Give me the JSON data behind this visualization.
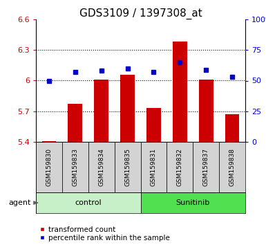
{
  "title": "GDS3109 / 1397308_at",
  "samples": [
    "GSM159830",
    "GSM159833",
    "GSM159834",
    "GSM159835",
    "GSM159831",
    "GSM159832",
    "GSM159837",
    "GSM159838"
  ],
  "groups": [
    "control",
    "control",
    "control",
    "control",
    "Sunitinib",
    "Sunitinib",
    "Sunitinib",
    "Sunitinib"
  ],
  "red_values": [
    5.41,
    5.77,
    6.01,
    6.06,
    5.73,
    6.38,
    6.01,
    5.67
  ],
  "blue_values": [
    50,
    57,
    58,
    60,
    57,
    65,
    59,
    53
  ],
  "ylim_left": [
    5.4,
    6.6
  ],
  "ylim_right": [
    0,
    100
  ],
  "yticks_left": [
    5.4,
    5.7,
    6.0,
    6.3,
    6.6
  ],
  "yticks_right": [
    0,
    25,
    50,
    75,
    100
  ],
  "ytick_labels_left": [
    "5.4",
    "5.7",
    "6",
    "6.3",
    "6.6"
  ],
  "ytick_labels_right": [
    "0",
    "25",
    "50",
    "75",
    "100%"
  ],
  "bar_color": "#cc0000",
  "dot_color": "#0000cc",
  "bar_bottom": 5.4,
  "bar_width": 0.55,
  "group_colors_light": {
    "control": "#c8f0c8",
    "Sunitinib": "#50e050"
  },
  "legend_red_label": "transformed count",
  "legend_blue_label": "percentile rank within the sample",
  "agent_label": "agent",
  "title_fontsize": 11,
  "tick_fontsize": 8,
  "sample_fontsize": 6.5,
  "group_fontsize": 8,
  "legend_fontsize": 7.5
}
